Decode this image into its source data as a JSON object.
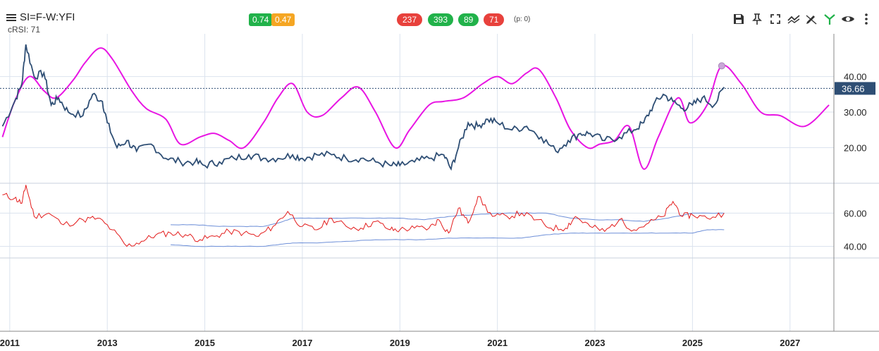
{
  "header": {
    "symbol": "SI=F-W:YFI",
    "study_label": "cRSI: 71",
    "badges": [
      {
        "text": "0.74",
        "color": "#21b24a"
      },
      {
        "text": "0.47",
        "color": "#f5a623"
      },
      {
        "text": "237",
        "color": "#e8413c"
      },
      {
        "text": "393",
        "color": "#21b24a"
      },
      {
        "text": "89",
        "color": "#21b24a"
      },
      {
        "text": "71",
        "color": "#e8413c"
      }
    ],
    "p_label": "(p: 0)"
  },
  "toolbar_icons": [
    "save-icon",
    "pin-icon",
    "fullscreen-icon",
    "compare-icon",
    "draw-icon",
    "signal-icon",
    "eye-icon",
    "more-icon"
  ],
  "colors": {
    "price_line": "#2e4e74",
    "cycle_line": "#e815e3",
    "rsi_line": "#e31b1b",
    "band_line": "#6d8fd8",
    "last_price_bg": "#2e4e74",
    "grid": "#dbe3ee",
    "dot": "#c9a7d8"
  },
  "chart_data": [
    {
      "type": "line",
      "panel": "price",
      "y_ticks": [
        "20.00",
        "30.00",
        "40.00"
      ],
      "ylim": [
        10,
        52
      ],
      "last_value": "36.66",
      "series": [
        {
          "role": "price",
          "x": [
            2010.85,
            2011.1,
            2011.25,
            2011.33,
            2011.5,
            2011.7,
            2011.85,
            2012.0,
            2012.2,
            2012.5,
            2012.7,
            2012.9,
            2013.0,
            2013.2,
            2013.4,
            2013.6,
            2013.9,
            2014.2,
            2014.5,
            2014.8,
            2015.0,
            2015.3,
            2015.6,
            2015.9,
            2016.2,
            2016.5,
            2016.8,
            2017.0,
            2017.3,
            2017.6,
            2017.9,
            2018.2,
            2018.5,
            2018.8,
            2019.0,
            2019.3,
            2019.6,
            2019.9,
            2020.05,
            2020.2,
            2020.4,
            2020.6,
            2020.8,
            2021.0,
            2021.3,
            2021.6,
            2021.9,
            2022.2,
            2022.45,
            2022.7,
            2022.9,
            2023.2,
            2023.5,
            2023.8,
            2024.0,
            2024.2,
            2024.4,
            2024.6,
            2024.8,
            2025.0,
            2025.2,
            2025.45,
            2025.65
          ],
          "y": [
            26,
            33,
            38,
            49,
            40,
            41,
            32,
            34,
            30,
            29,
            35,
            33,
            27,
            20,
            22,
            19,
            21,
            17,
            16,
            16,
            15,
            16,
            17,
            18,
            17,
            17,
            18,
            17,
            18,
            18,
            17,
            17,
            16,
            15,
            15,
            16,
            17,
            18,
            14,
            20,
            27,
            26,
            28,
            27,
            25,
            26,
            23,
            19,
            22,
            24,
            24,
            22,
            23,
            25,
            27,
            32,
            35,
            33,
            31,
            32,
            34,
            32,
            37
          ]
        },
        {
          "role": "cycle",
          "x": [
            2010.85,
            2011.1,
            2011.4,
            2011.7,
            2011.95,
            2012.3,
            2012.55,
            2012.85,
            2013.1,
            2013.5,
            2013.8,
            2014.2,
            2014.5,
            2014.9,
            2015.2,
            2015.5,
            2015.8,
            2016.2,
            2016.5,
            2016.8,
            2017.1,
            2017.4,
            2017.8,
            2018.15,
            2018.5,
            2018.9,
            2019.2,
            2019.6,
            2019.9,
            2020.3,
            2020.7,
            2021.0,
            2021.3,
            2021.6,
            2021.85,
            2022.2,
            2022.5,
            2022.85,
            2023.1,
            2023.4,
            2023.7,
            2024.0,
            2024.3,
            2024.7,
            2024.95,
            2025.3,
            2025.6,
            2026.0,
            2026.4,
            2026.8,
            2027.3,
            2027.8
          ],
          "y": [
            23,
            33,
            40,
            36,
            34,
            39,
            44,
            48,
            45,
            36,
            31,
            28,
            21,
            23,
            24,
            22,
            20,
            27,
            34,
            38,
            30,
            29,
            34,
            37,
            30,
            20,
            25,
            32,
            33,
            34,
            38,
            40,
            38,
            41,
            42,
            34,
            25,
            20,
            21,
            22,
            26,
            14,
            23,
            34,
            27,
            32,
            43,
            38,
            30,
            29,
            26,
            32
          ]
        }
      ]
    },
    {
      "type": "line",
      "panel": "cRSI",
      "y_ticks": [
        "40.00",
        "60.00"
      ],
      "ylim": [
        33,
        78
      ],
      "series": [
        {
          "role": "cRSI",
          "x": [
            2010.85,
            2011.1,
            2011.25,
            2011.33,
            2011.5,
            2011.8,
            2012.1,
            2012.5,
            2012.8,
            2013.1,
            2013.4,
            2013.7,
            2014.0,
            2014.3,
            2014.6,
            2014.9,
            2015.2,
            2015.5,
            2015.8,
            2016.1,
            2016.4,
            2016.7,
            2017.0,
            2017.3,
            2017.6,
            2017.9,
            2018.2,
            2018.5,
            2018.8,
            2019.0,
            2019.3,
            2019.6,
            2019.8,
            2020.0,
            2020.2,
            2020.4,
            2020.6,
            2020.9,
            2021.2,
            2021.5,
            2021.8,
            2022.1,
            2022.4,
            2022.6,
            2022.9,
            2023.2,
            2023.5,
            2023.8,
            2024.1,
            2024.4,
            2024.6,
            2024.8,
            2025.0,
            2025.3,
            2025.65
          ],
          "y": [
            71,
            69,
            66,
            77,
            58,
            60,
            53,
            56,
            57,
            50,
            40,
            43,
            47,
            48,
            47,
            44,
            46,
            49,
            48,
            46,
            52,
            61,
            52,
            50,
            57,
            52,
            51,
            55,
            50,
            50,
            51,
            51,
            56,
            48,
            63,
            54,
            70,
            58,
            58,
            60,
            56,
            51,
            51,
            58,
            52,
            49,
            56,
            50,
            54,
            58,
            67,
            58,
            59,
            57,
            60
          ]
        },
        {
          "role": "upper_band",
          "x": [
            2014.3,
            2014.8,
            2015.3,
            2015.8,
            2016.2,
            2016.5,
            2016.8,
            2017.3,
            2017.9,
            2018.5,
            2019.0,
            2019.5,
            2020.0,
            2020.5,
            2021.0,
            2021.5,
            2022.0,
            2022.5,
            2023.0,
            2023.5,
            2024.0,
            2024.5,
            2025.0,
            2025.65
          ],
          "y": [
            53,
            53,
            52,
            52,
            52,
            54,
            57,
            57,
            57,
            57,
            57,
            56,
            58,
            59,
            60,
            60,
            60,
            57,
            56,
            56,
            55,
            57,
            60,
            60
          ]
        },
        {
          "role": "lower_band",
          "x": [
            2014.3,
            2014.8,
            2015.3,
            2015.8,
            2016.2,
            2016.5,
            2016.8,
            2017.3,
            2017.9,
            2018.5,
            2019.0,
            2019.5,
            2020.0,
            2020.5,
            2021.0,
            2021.5,
            2022.0,
            2022.5,
            2023.0,
            2023.5,
            2024.0,
            2024.5,
            2025.0,
            2025.3,
            2025.65
          ],
          "y": [
            41,
            40,
            40,
            40,
            40,
            41,
            42,
            42,
            43,
            44,
            44,
            44,
            45,
            45,
            45,
            45,
            47,
            48,
            48,
            48,
            48,
            48,
            48,
            50,
            50
          ]
        }
      ]
    },
    {
      "type": "line",
      "panel": "time-axis",
      "x_ticks": [
        2011,
        2013,
        2015,
        2017,
        2019,
        2021,
        2023,
        2025,
        2027
      ],
      "x_tick_labels": [
        "2011",
        "2013",
        "2015",
        "2017",
        "2019",
        "2021",
        "2023",
        "2025",
        "2027"
      ],
      "xlim": [
        2010.8,
        2027.9
      ],
      "grid": true
    }
  ]
}
